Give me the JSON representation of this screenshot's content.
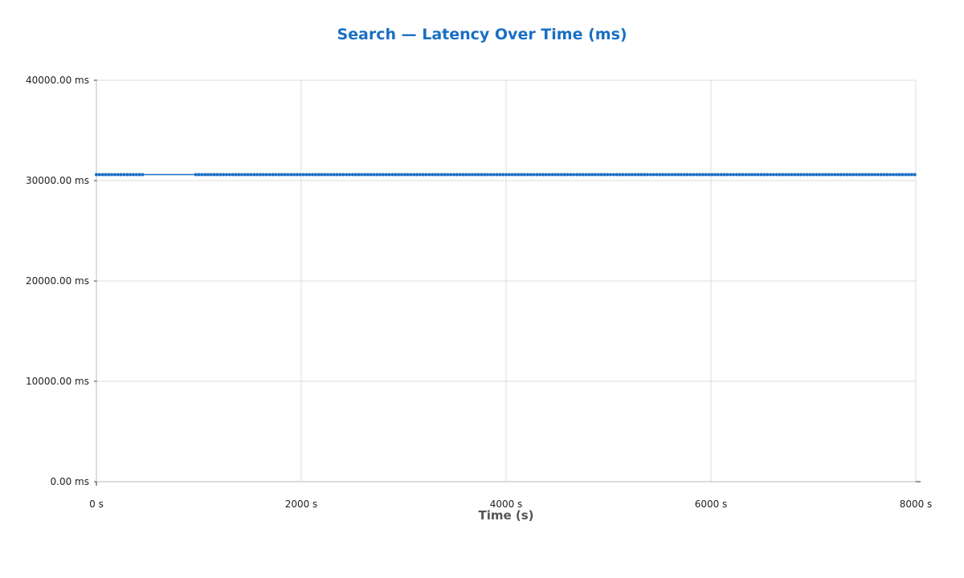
{
  "chart_data": {
    "type": "line",
    "title": "Search — Latency Over Time (ms)",
    "xlabel": "Time (s)",
    "ylabel": "",
    "xlim": [
      0,
      8000
    ],
    "ylim": [
      0,
      40000
    ],
    "x_ticks": [
      0,
      2000,
      4000,
      6000,
      8000
    ],
    "x_tick_labels": [
      "0 s",
      "2000 s",
      "4000 s",
      "6000 s",
      "8000 s"
    ],
    "y_ticks": [
      0,
      10000,
      20000,
      30000,
      40000
    ],
    "y_tick_labels": [
      "0.00 ms",
      "10000.00 ms",
      "20000.00 ms",
      "30000.00 ms",
      "40000.00 ms"
    ],
    "grid": true,
    "legend": "none",
    "colors": {
      "title": "#1a6fc4",
      "series": "#1a6fc4"
    },
    "series": [
      {
        "segments": [
          {
            "x_start": 0,
            "x_end": 470,
            "step": 30,
            "y": 30600
          },
          {
            "x_start": 970,
            "x_end": 8010,
            "step": 30,
            "y": 30600
          }
        ]
      }
    ]
  }
}
